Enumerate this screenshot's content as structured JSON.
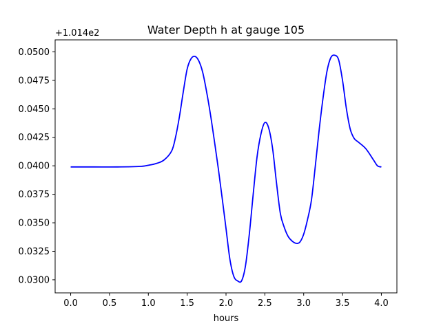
{
  "chart_data": {
    "type": "line",
    "title": "Water Depth h at gauge 105",
    "xlabel": "hours",
    "ylabel": "",
    "offset_text": "+1.014e2",
    "xlim": [
      -0.2,
      4.2
    ],
    "ylim": [
      0.02885,
      0.05105
    ],
    "xticks": [
      0.0,
      0.5,
      1.0,
      1.5,
      2.0,
      2.5,
      3.0,
      3.5,
      4.0
    ],
    "xtick_labels": [
      "0.0",
      "0.5",
      "1.0",
      "1.5",
      "2.0",
      "2.5",
      "3.0",
      "3.5",
      "4.0"
    ],
    "yticks": [
      0.03,
      0.0325,
      0.035,
      0.0375,
      0.04,
      0.0425,
      0.045,
      0.0475,
      0.05
    ],
    "ytick_labels": [
      "0.0300",
      "0.0325",
      "0.0350",
      "0.0375",
      "0.0400",
      "0.0425",
      "0.0450",
      "0.0475",
      "0.0500"
    ],
    "grid": false,
    "series": [
      {
        "color": "#0000ff",
        "x": [
          0.0,
          0.3,
          0.6,
          0.9,
          1.0,
          1.1,
          1.2,
          1.3,
          1.35,
          1.4,
          1.45,
          1.5,
          1.55,
          1.6,
          1.65,
          1.7,
          1.75,
          1.8,
          1.85,
          1.9,
          1.95,
          2.0,
          2.05,
          2.1,
          2.15,
          2.2,
          2.25,
          2.3,
          2.35,
          2.4,
          2.45,
          2.5,
          2.55,
          2.6,
          2.65,
          2.7,
          2.75,
          2.8,
          2.85,
          2.9,
          2.95,
          3.0,
          3.05,
          3.1,
          3.15,
          3.2,
          3.25,
          3.3,
          3.35,
          3.4,
          3.45,
          3.5,
          3.55,
          3.6,
          3.65,
          3.7,
          3.8,
          3.9,
          3.95,
          4.0
        ],
        "y": [
          0.0399,
          0.0399,
          0.0399,
          0.03995,
          0.04005,
          0.0402,
          0.0405,
          0.0413,
          0.0425,
          0.0443,
          0.0465,
          0.0485,
          0.0494,
          0.0496,
          0.0492,
          0.0482,
          0.0465,
          0.0445,
          0.0422,
          0.0398,
          0.0372,
          0.0345,
          0.0318,
          0.0303,
          0.0299,
          0.0299,
          0.0312,
          0.034,
          0.0375,
          0.0408,
          0.0428,
          0.0438,
          0.0433,
          0.0415,
          0.0385,
          0.0358,
          0.0346,
          0.0338,
          0.0334,
          0.0332,
          0.0333,
          0.034,
          0.0353,
          0.037,
          0.04,
          0.0432,
          0.046,
          0.0483,
          0.0495,
          0.0497,
          0.0493,
          0.0475,
          0.045,
          0.0432,
          0.0424,
          0.0421,
          0.0415,
          0.0405,
          0.04,
          0.0399
        ]
      }
    ]
  }
}
